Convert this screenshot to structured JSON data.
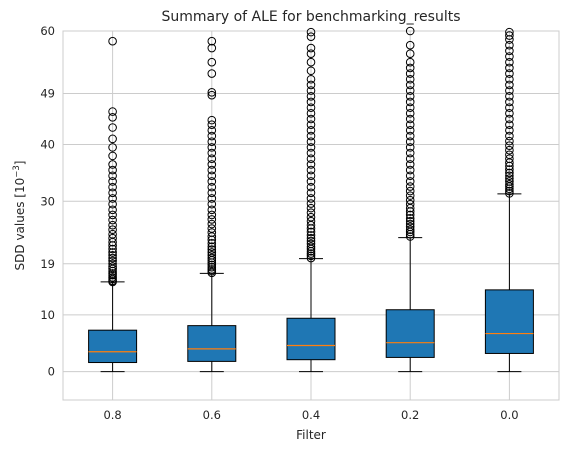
{
  "chart_data": {
    "type": "box",
    "title": "Summary of ALE for benchmarking_results",
    "xlabel": "Filter",
    "ylabel": "SDD values [10",
    "ylabel_exponent": "−3",
    "ylabel_suffix": "]",
    "ylim": [
      -5,
      60
    ],
    "yticks": [
      0,
      10,
      19,
      30,
      40,
      49,
      60
    ],
    "grid": true,
    "colors": {
      "box": "#1f77b4",
      "median": "#ff7f0e",
      "grid": "#cccccc",
      "outline": "#000000"
    },
    "categories": [
      "0.8",
      "0.6",
      "0.4",
      "0.2",
      "0.0"
    ],
    "boxes": [
      {
        "category": "0.8",
        "whisker_low": 0,
        "q1": 1.6,
        "median": 3.5,
        "q3": 7.3,
        "whisker_high": 15.8,
        "outliers": [
          15.8,
          16.0,
          16.3,
          16.6,
          17.0,
          17.3,
          17.7,
          18.1,
          18.5,
          19.0,
          19.5,
          20.0,
          20.5,
          21.0,
          21.6,
          22.2,
          22.8,
          23.5,
          24.2,
          25.0,
          25.8,
          26.7,
          27.6,
          28.5,
          29.5,
          30.5,
          31.5,
          32.5,
          33.5,
          34.5,
          35.5,
          36.5,
          38.0,
          39.5,
          41.0,
          43.0,
          44.8,
          45.8,
          58.2
        ]
      },
      {
        "category": "0.6",
        "whisker_low": 0,
        "q1": 1.8,
        "median": 4.0,
        "q3": 8.1,
        "whisker_high": 17.3,
        "outliers": [
          17.4,
          17.7,
          18.0,
          18.4,
          18.8,
          19.2,
          19.6,
          20.0,
          20.5,
          21.0,
          21.5,
          22.0,
          22.6,
          23.2,
          23.8,
          24.5,
          25.2,
          26.0,
          26.8,
          27.6,
          28.5,
          29.5,
          30.5,
          31.5,
          32.5,
          33.5,
          34.5,
          35.5,
          36.5,
          37.5,
          38.5,
          39.5,
          40.5,
          41.5,
          42.5,
          43.5,
          44.3,
          48.7,
          49.2,
          52.5,
          54.5,
          57.0,
          58.2
        ]
      },
      {
        "category": "0.4",
        "whisker_low": 0,
        "q1": 2.1,
        "median": 4.6,
        "q3": 9.4,
        "whisker_high": 19.9,
        "outliers": [
          20.0,
          20.4,
          20.8,
          21.2,
          21.6,
          22.0,
          22.5,
          23.0,
          23.5,
          24.0,
          24.6,
          25.2,
          25.8,
          26.5,
          27.2,
          28.0,
          28.8,
          29.6,
          30.5,
          31.5,
          32.5,
          33.5,
          34.5,
          35.5,
          36.5,
          37.5,
          38.5,
          39.5,
          40.5,
          41.5,
          42.5,
          43.5,
          44.5,
          45.5,
          46.5,
          47.5,
          48.5,
          49.5,
          50.5,
          51.5,
          53.0,
          54.5,
          56.0,
          57.0,
          59.0,
          59.8
        ]
      },
      {
        "category": "0.2",
        "whisker_low": 0,
        "q1": 2.5,
        "median": 5.1,
        "q3": 10.9,
        "whisker_high": 23.6,
        "outliers": [
          23.8,
          24.2,
          24.6,
          25.0,
          25.5,
          26.0,
          26.5,
          27.0,
          27.6,
          28.2,
          28.8,
          29.5,
          30.2,
          31.0,
          31.8,
          32.6,
          33.5,
          34.5,
          35.5,
          36.5,
          37.5,
          38.5,
          39.5,
          40.5,
          41.5,
          42.5,
          43.5,
          44.5,
          45.5,
          46.5,
          47.5,
          48.5,
          49.5,
          50.5,
          51.5,
          52.5,
          53.5,
          54.5,
          56.0,
          57.5,
          60.0
        ]
      },
      {
        "category": "0.0",
        "whisker_low": 0,
        "q1": 3.2,
        "median": 6.7,
        "q3": 14.4,
        "whisker_high": 31.3,
        "outliers": [
          31.4,
          31.8,
          32.2,
          32.6,
          33.0,
          33.5,
          34.0,
          34.5,
          35.0,
          35.6,
          36.2,
          36.8,
          37.5,
          38.2,
          39.0,
          39.8,
          40.6,
          41.5,
          42.5,
          43.5,
          44.5,
          45.5,
          46.5,
          47.5,
          48.5,
          49.5,
          50.5,
          51.5,
          52.5,
          53.5,
          54.5,
          55.5,
          56.5,
          57.5,
          58.5,
          59.2,
          59.8
        ]
      }
    ]
  }
}
